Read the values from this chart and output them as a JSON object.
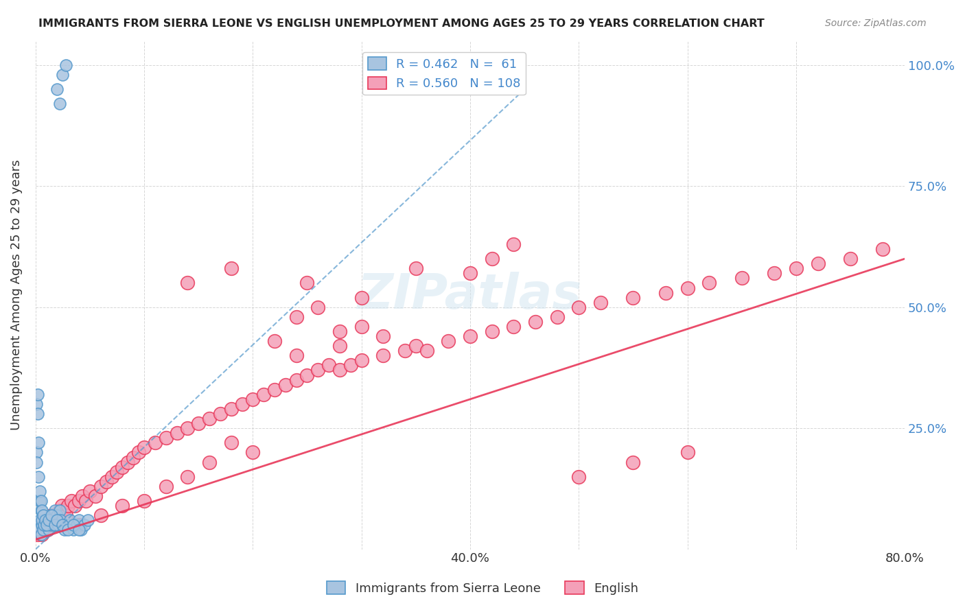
{
  "title": "IMMIGRANTS FROM SIERRA LEONE VS ENGLISH UNEMPLOYMENT AMONG AGES 25 TO 29 YEARS CORRELATION CHART",
  "source": "Source: ZipAtlas.com",
  "xlabel": "",
  "ylabel": "Unemployment Among Ages 25 to 29 years",
  "xlim": [
    0,
    0.8
  ],
  "ylim": [
    0,
    1.05
  ],
  "xticks": [
    0.0,
    0.1,
    0.2,
    0.3,
    0.4,
    0.5,
    0.6,
    0.7,
    0.8
  ],
  "xticklabels": [
    "0.0%",
    "",
    "",
    "",
    "40.0%",
    "",
    "",
    "",
    "80.0%"
  ],
  "ytick_positions": [
    0,
    0.25,
    0.5,
    0.75,
    1.0
  ],
  "ytick_labels": [
    "",
    "25.0%",
    "50.0%",
    "75.0%",
    "100.0%"
  ],
  "blue_R": 0.462,
  "blue_N": 61,
  "pink_R": 0.56,
  "pink_N": 108,
  "blue_color": "#a8c4e0",
  "pink_color": "#f4a0b8",
  "blue_line_color": "#5599cc",
  "pink_line_color": "#e8385a",
  "watermark": "ZIPatlas",
  "legend_label_blue": "Immigrants from Sierra Leone",
  "legend_label_pink": "English",
  "blue_scatter_x": [
    0.002,
    0.003,
    0.004,
    0.005,
    0.006,
    0.007,
    0.008,
    0.009,
    0.01,
    0.011,
    0.012,
    0.013,
    0.014,
    0.015,
    0.016,
    0.017,
    0.018,
    0.019,
    0.02,
    0.021,
    0.022,
    0.023,
    0.025,
    0.027,
    0.03,
    0.032,
    0.035,
    0.038,
    0.04,
    0.042,
    0.045,
    0.048,
    0.001,
    0.001,
    0.001,
    0.002,
    0.002,
    0.003,
    0.003,
    0.004,
    0.004,
    0.005,
    0.005,
    0.006,
    0.006,
    0.007,
    0.008,
    0.009,
    0.01,
    0.012,
    0.015,
    0.018,
    0.02,
    0.025,
    0.03,
    0.035,
    0.04,
    0.02,
    0.022,
    0.025,
    0.028
  ],
  "blue_scatter_y": [
    0.05,
    0.04,
    0.06,
    0.03,
    0.05,
    0.04,
    0.07,
    0.05,
    0.06,
    0.05,
    0.04,
    0.06,
    0.05,
    0.07,
    0.06,
    0.05,
    0.08,
    0.06,
    0.07,
    0.05,
    0.08,
    0.06,
    0.05,
    0.04,
    0.05,
    0.06,
    0.04,
    0.05,
    0.06,
    0.04,
    0.05,
    0.06,
    0.2,
    0.3,
    0.18,
    0.28,
    0.32,
    0.22,
    0.15,
    0.1,
    0.12,
    0.08,
    0.1,
    0.06,
    0.08,
    0.07,
    0.05,
    0.06,
    0.05,
    0.06,
    0.07,
    0.05,
    0.06,
    0.05,
    0.04,
    0.05,
    0.04,
    0.95,
    0.92,
    0.98,
    1.0
  ],
  "pink_scatter_x": [
    0.002,
    0.003,
    0.004,
    0.005,
    0.006,
    0.007,
    0.008,
    0.009,
    0.01,
    0.011,
    0.012,
    0.013,
    0.015,
    0.016,
    0.017,
    0.018,
    0.02,
    0.022,
    0.024,
    0.026,
    0.028,
    0.03,
    0.033,
    0.036,
    0.04,
    0.043,
    0.046,
    0.05,
    0.055,
    0.06,
    0.065,
    0.07,
    0.075,
    0.08,
    0.085,
    0.09,
    0.095,
    0.1,
    0.11,
    0.12,
    0.13,
    0.14,
    0.15,
    0.16,
    0.17,
    0.18,
    0.19,
    0.2,
    0.21,
    0.22,
    0.23,
    0.24,
    0.25,
    0.26,
    0.27,
    0.28,
    0.29,
    0.3,
    0.32,
    0.34,
    0.35,
    0.36,
    0.38,
    0.4,
    0.42,
    0.44,
    0.46,
    0.48,
    0.5,
    0.52,
    0.55,
    0.58,
    0.6,
    0.62,
    0.65,
    0.68,
    0.7,
    0.72,
    0.75,
    0.78,
    0.14,
    0.18,
    0.25,
    0.3,
    0.35,
    0.4,
    0.42,
    0.44,
    0.28,
    0.32,
    0.3,
    0.24,
    0.26,
    0.28,
    0.22,
    0.24,
    0.2,
    0.18,
    0.16,
    0.14,
    0.12,
    0.1,
    0.08,
    0.06,
    0.04,
    0.5,
    0.55,
    0.6
  ],
  "pink_scatter_y": [
    0.03,
    0.04,
    0.05,
    0.04,
    0.03,
    0.05,
    0.04,
    0.06,
    0.05,
    0.04,
    0.06,
    0.05,
    0.07,
    0.06,
    0.05,
    0.06,
    0.07,
    0.08,
    0.09,
    0.08,
    0.07,
    0.09,
    0.1,
    0.09,
    0.1,
    0.11,
    0.1,
    0.12,
    0.11,
    0.13,
    0.14,
    0.15,
    0.16,
    0.17,
    0.18,
    0.19,
    0.2,
    0.21,
    0.22,
    0.23,
    0.24,
    0.25,
    0.26,
    0.27,
    0.28,
    0.29,
    0.3,
    0.31,
    0.32,
    0.33,
    0.34,
    0.35,
    0.36,
    0.37,
    0.38,
    0.37,
    0.38,
    0.39,
    0.4,
    0.41,
    0.42,
    0.41,
    0.43,
    0.44,
    0.45,
    0.46,
    0.47,
    0.48,
    0.5,
    0.51,
    0.52,
    0.53,
    0.54,
    0.55,
    0.56,
    0.57,
    0.58,
    0.59,
    0.6,
    0.62,
    0.55,
    0.58,
    0.55,
    0.52,
    0.58,
    0.57,
    0.6,
    0.63,
    0.42,
    0.44,
    0.46,
    0.48,
    0.5,
    0.45,
    0.43,
    0.4,
    0.2,
    0.22,
    0.18,
    0.15,
    0.13,
    0.1,
    0.09,
    0.07,
    0.05,
    0.15,
    0.18,
    0.2
  ],
  "blue_line_x": [
    0.0,
    0.45
  ],
  "blue_line_y": [
    0.0,
    0.95
  ],
  "pink_line_x": [
    0.0,
    0.8
  ],
  "pink_line_y": [
    0.02,
    0.6
  ]
}
